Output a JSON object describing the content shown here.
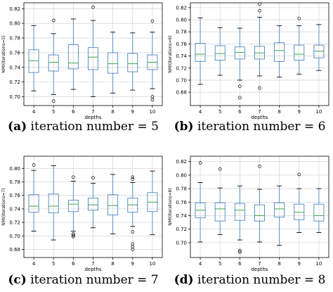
{
  "chart_data": [
    {
      "type": "boxplot",
      "xlabel": "depths",
      "ylabel": "NMI(iterations=5)",
      "categories": [
        "4",
        "5",
        "6",
        "7",
        "8",
        "9",
        "10"
      ],
      "ylim": [
        0.688,
        0.828
      ],
      "yticks": [
        0.7,
        0.72,
        0.74,
        0.76,
        0.78,
        0.8,
        0.82
      ],
      "grid": true,
      "caption_tag": "(a)",
      "caption_text": "iteration number = 5",
      "boxes": [
        {
          "whislo": 0.708,
          "q1": 0.733,
          "med": 0.749,
          "q3": 0.764,
          "whishi": 0.797,
          "fliers": []
        },
        {
          "whislo": 0.703,
          "q1": 0.735,
          "med": 0.747,
          "q3": 0.757,
          "whishi": 0.786,
          "fliers": [
            0.804,
            0.694
          ]
        },
        {
          "whislo": 0.71,
          "q1": 0.738,
          "med": 0.746,
          "q3": 0.771,
          "whishi": 0.806,
          "fliers": []
        },
        {
          "whislo": 0.7,
          "q1": 0.737,
          "med": 0.754,
          "q3": 0.767,
          "whishi": 0.804,
          "fliers": [
            0.822
          ]
        },
        {
          "whislo": 0.705,
          "q1": 0.732,
          "med": 0.745,
          "q3": 0.76,
          "whishi": 0.788,
          "fliers": []
        },
        {
          "whislo": 0.709,
          "q1": 0.734,
          "med": 0.745,
          "q3": 0.759,
          "whishi": 0.787,
          "fliers": []
        },
        {
          "whislo": 0.711,
          "q1": 0.737,
          "med": 0.747,
          "q3": 0.757,
          "whishi": 0.788,
          "fliers": [
            0.803,
            0.7,
            0.696
          ]
        }
      ]
    },
    {
      "type": "boxplot",
      "xlabel": "depths",
      "ylabel": "NMI(iterations=6)",
      "categories": [
        "4",
        "5",
        "6",
        "7",
        "8",
        "9",
        "10"
      ],
      "ylim": [
        0.658,
        0.828
      ],
      "yticks": [
        0.68,
        0.7,
        0.72,
        0.74,
        0.76,
        0.78,
        0.8,
        0.82
      ],
      "grid": true,
      "caption_tag": "(b)",
      "caption_text": "iteration number = 6",
      "boxes": [
        {
          "whislo": 0.693,
          "q1": 0.731,
          "med": 0.743,
          "q3": 0.761,
          "whishi": 0.803,
          "fliers": []
        },
        {
          "whislo": 0.708,
          "q1": 0.733,
          "med": 0.744,
          "q3": 0.757,
          "whishi": 0.787,
          "fliers": []
        },
        {
          "whislo": 0.7,
          "q1": 0.735,
          "med": 0.746,
          "q3": 0.755,
          "whishi": 0.786,
          "fliers": [
            0.69,
            0.671
          ]
        },
        {
          "whislo": 0.707,
          "q1": 0.735,
          "med": 0.745,
          "q3": 0.756,
          "whishi": 0.804,
          "fliers": [
            0.815,
            0.826,
            0.687
          ]
        },
        {
          "whislo": 0.705,
          "q1": 0.731,
          "med": 0.749,
          "q3": 0.762,
          "whishi": 0.79,
          "fliers": []
        },
        {
          "whislo": 0.71,
          "q1": 0.733,
          "med": 0.743,
          "q3": 0.758,
          "whishi": 0.79,
          "fliers": [
            0.802
          ]
        },
        {
          "whislo": 0.716,
          "q1": 0.737,
          "med": 0.748,
          "q3": 0.758,
          "whishi": 0.792,
          "fliers": []
        }
      ]
    },
    {
      "type": "boxplot",
      "xlabel": "depths",
      "ylabel": "NMI(iterations=7)",
      "categories": [
        "4",
        "5",
        "6",
        "7",
        "8",
        "9",
        "10"
      ],
      "ylim": [
        0.668,
        0.818
      ],
      "yticks": [
        0.68,
        0.7,
        0.72,
        0.74,
        0.76,
        0.78,
        0.8
      ],
      "grid": true,
      "caption_tag": "(c)",
      "caption_text": "iteration number = 7",
      "boxes": [
        {
          "whislo": 0.707,
          "q1": 0.735,
          "med": 0.744,
          "q3": 0.761,
          "whishi": 0.797,
          "fliers": [
            0.805
          ]
        },
        {
          "whislo": 0.694,
          "q1": 0.734,
          "med": 0.744,
          "q3": 0.762,
          "whishi": 0.804,
          "fliers": []
        },
        {
          "whislo": 0.707,
          "q1": 0.736,
          "med": 0.747,
          "q3": 0.753,
          "whishi": 0.781,
          "fliers": [
            0.787,
            0.703,
            0.701,
            0.699
          ]
        },
        {
          "whislo": 0.712,
          "q1": 0.738,
          "med": 0.746,
          "q3": 0.756,
          "whishi": 0.778,
          "fliers": [
            0.786
          ]
        },
        {
          "whislo": 0.703,
          "q1": 0.731,
          "med": 0.745,
          "q3": 0.761,
          "whishi": 0.791,
          "fliers": []
        },
        {
          "whislo": 0.714,
          "q1": 0.735,
          "med": 0.746,
          "q3": 0.756,
          "whishi": 0.779,
          "fliers": [
            0.784,
            0.787,
            0.706,
            0.688,
            0.684,
            0.68
          ]
        },
        {
          "whislo": 0.702,
          "q1": 0.736,
          "med": 0.75,
          "q3": 0.764,
          "whishi": 0.796,
          "fliers": []
        }
      ]
    },
    {
      "type": "boxplot",
      "xlabel": "depths",
      "ylabel": "NMI(iterations=8)",
      "categories": [
        "4",
        "5",
        "6",
        "7",
        "8",
        "9",
        "10"
      ],
      "ylim": [
        0.678,
        0.828
      ],
      "yticks": [
        0.7,
        0.72,
        0.74,
        0.76,
        0.78,
        0.8,
        0.82
      ],
      "grid": true,
      "caption_tag": "(d)",
      "caption_text": "iteration number = 8",
      "boxes": [
        {
          "whislo": 0.701,
          "q1": 0.737,
          "med": 0.748,
          "q3": 0.759,
          "whishi": 0.789,
          "fliers": [
            0.818
          ]
        },
        {
          "whislo": 0.712,
          "q1": 0.732,
          "med": 0.75,
          "q3": 0.759,
          "whishi": 0.781,
          "fliers": [
            0.809
          ]
        },
        {
          "whislo": 0.704,
          "q1": 0.733,
          "med": 0.748,
          "q3": 0.758,
          "whishi": 0.784,
          "fliers": [
            0.688,
            0.686
          ]
        },
        {
          "whislo": 0.701,
          "q1": 0.732,
          "med": 0.74,
          "q3": 0.756,
          "whishi": 0.779,
          "fliers": [
            0.813
          ]
        },
        {
          "whislo": 0.696,
          "q1": 0.738,
          "med": 0.75,
          "q3": 0.759,
          "whishi": 0.784,
          "fliers": []
        },
        {
          "whislo": 0.715,
          "q1": 0.734,
          "med": 0.745,
          "q3": 0.757,
          "whishi": 0.78,
          "fliers": [
            0.801
          ]
        },
        {
          "whislo": 0.715,
          "q1": 0.732,
          "med": 0.74,
          "q3": 0.757,
          "whishi": 0.78,
          "fliers": []
        }
      ]
    }
  ],
  "style": {
    "box_color": "#4a86c0",
    "median_color": "#3aa845",
    "grid_color": "#cccccc",
    "axis_color": "#000000"
  }
}
